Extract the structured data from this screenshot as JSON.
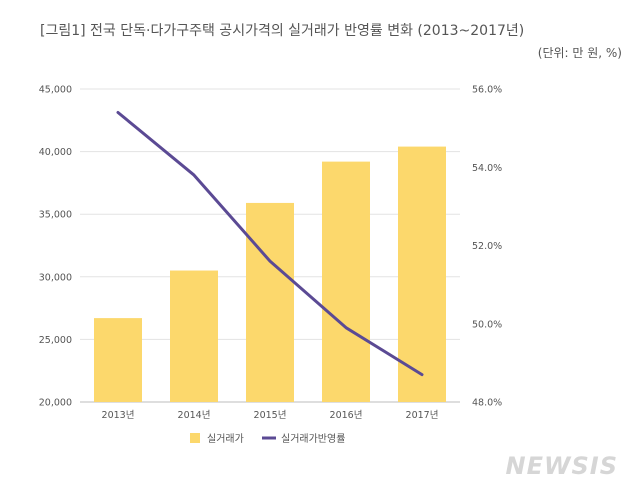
{
  "title": "[그림1] 전국 단독·다가구주택 공시가격의 실거래가 반영률 변화 (2013~2017년)",
  "unit_note": "(단위: 만 원, %)",
  "watermark": "NEWSIS",
  "colors": {
    "bar": "#FCD86C",
    "line": "#5B4A94",
    "grid": "#e3e3e3",
    "text": "#555555"
  },
  "chart_data": {
    "type": "bar",
    "categories": [
      "2013년",
      "2014년",
      "2015년",
      "2016년",
      "2017년"
    ],
    "series": [
      {
        "name": "실거래가",
        "kind": "bar",
        "axis": "left",
        "values": [
          26700,
          30500,
          35900,
          39200,
          40400
        ]
      },
      {
        "name": "실거래가반영률",
        "kind": "line",
        "axis": "right",
        "values": [
          55.4,
          53.8,
          51.6,
          49.9,
          48.7
        ]
      }
    ],
    "y_left": {
      "min": 20000,
      "max": 45000,
      "ticks": [
        "20,000",
        "25,000",
        "30,000",
        "35,000",
        "40,000",
        "45,000"
      ]
    },
    "y_right": {
      "min": 48,
      "max": 56,
      "ticks": [
        "48.0%",
        "50.0%",
        "52.0%",
        "54.0%",
        "56.0%"
      ]
    },
    "grid": true,
    "legend": "bottom"
  }
}
